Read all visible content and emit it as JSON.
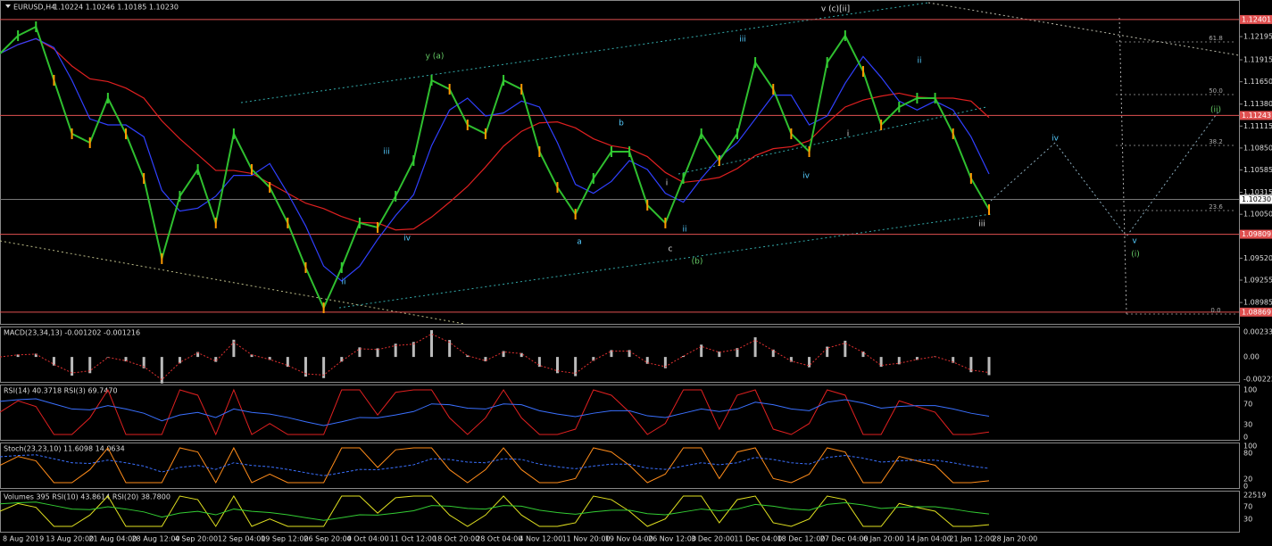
{
  "header": {
    "symbol": "EURUSD,H4",
    "quote": "1.10224 1.10246 1.10185 1.10230"
  },
  "price_axis": {
    "ylim": [
      1.08738,
      1.12637
    ],
    "ticks": [
      {
        "value": 1.12195,
        "label": "1.12195"
      },
      {
        "value": 1.11915,
        "label": "1.11915"
      },
      {
        "value": 1.1165,
        "label": "1.11650"
      },
      {
        "value": 1.1138,
        "label": "1.11380"
      },
      {
        "value": 1.11115,
        "label": "1.11115"
      },
      {
        "value": 1.1085,
        "label": "1.10850"
      },
      {
        "value": 1.10585,
        "label": "1.10585"
      },
      {
        "value": 1.10315,
        "label": "1.10315"
      },
      {
        "value": 1.1005,
        "label": "1.10050"
      },
      {
        "value": 1.0952,
        "label": "1.09520"
      },
      {
        "value": 1.09255,
        "label": "1.09255"
      },
      {
        "value": 1.08985,
        "label": "1.08985"
      }
    ],
    "levels": [
      {
        "value": 1.12401,
        "label": "1.12401"
      },
      {
        "value": 1.11243,
        "label": "1.11243"
      },
      {
        "value": 1.09809,
        "label": "1.09809"
      },
      {
        "value": 1.08869,
        "label": "1.08869"
      }
    ],
    "current": {
      "value": 1.1023,
      "label": "1.10230"
    }
  },
  "time_axis": [
    "8 Aug 2019",
    "13 Aug 20:00",
    "21 Aug 04:00",
    "28 Aug 12:00",
    "4 Sep 20:00",
    "12 Sep 04:00",
    "19 Sep 12:00",
    "26 Sep 20:00",
    "4 Oct 04:00",
    "11 Oct 12:00",
    "18 Oct 20:00",
    "28 Oct 04:00",
    "4 Nov 12:00",
    "11 Nov 20:00",
    "19 Nov 04:00",
    "26 Nov 12:00",
    "3 Dec 20:00",
    "11 Dec 04:00",
    "18 Dec 12:00",
    "27 Dec 04:00",
    "6 Jan 20:00",
    "14 Jan 04:00",
    "21 Jan 12:00",
    "28 Jan 20:00"
  ],
  "wave_labels": [
    "v (c)[ii]",
    "y (a)",
    "iii",
    "ii",
    "(ii)",
    "iv",
    "b",
    "iii",
    "iv",
    "a",
    "c",
    "(b)",
    "ii",
    "i",
    "iv",
    "i",
    "ii",
    "iii",
    "v",
    "(i)"
  ],
  "fib_labels": [
    "61.8",
    "50.0",
    "38.2",
    "23.6",
    "0.0"
  ],
  "price_series": [
    1.11991,
    1.12206,
    1.12314,
    1.11668,
    1.11022,
    1.10914,
    1.11452,
    1.11022,
    1.10483,
    1.09514,
    1.10268,
    1.10591,
    1.09945,
    1.11022,
    1.10591,
    1.10375,
    1.09945,
    1.09406,
    1.08921,
    1.09406,
    1.09945,
    1.09891,
    1.10268,
    1.10698,
    1.11668,
    1.1156,
    1.11129,
    1.11022,
    1.11668,
    1.1156,
    1.10806,
    1.10375,
    1.10052,
    1.10483,
    1.10806,
    1.10806,
    1.1016,
    1.09945,
    1.10483,
    1.11022,
    1.10698,
    1.11022,
    1.11883,
    1.1156,
    1.11022,
    1.10806,
    1.11883,
    1.12206,
    1.11775,
    1.11129,
    1.11345,
    1.11452,
    1.11452,
    1.11022,
    1.10483,
    1.10106
  ],
  "panels": [
    {
      "title": "MACD(23,34,13) -0.001202 -0.001216",
      "labels": [
        "0.002334",
        "0.00",
        "-0.00222"
      ]
    },
    {
      "title": "RSI(14) 40.3718 RSI(3) 69.7470",
      "labels": [
        "100",
        "70",
        "30",
        "0"
      ]
    },
    {
      "title": "Stoch(23,23,10) 11.6098 14.0634",
      "labels": [
        "100",
        "80",
        "20",
        "0"
      ]
    },
    {
      "title": "Volumes 395 RSI(10) 43.8614 RSI(20) 38.7800",
      "labels": [
        "22519",
        "70",
        "30"
      ]
    }
  ]
}
